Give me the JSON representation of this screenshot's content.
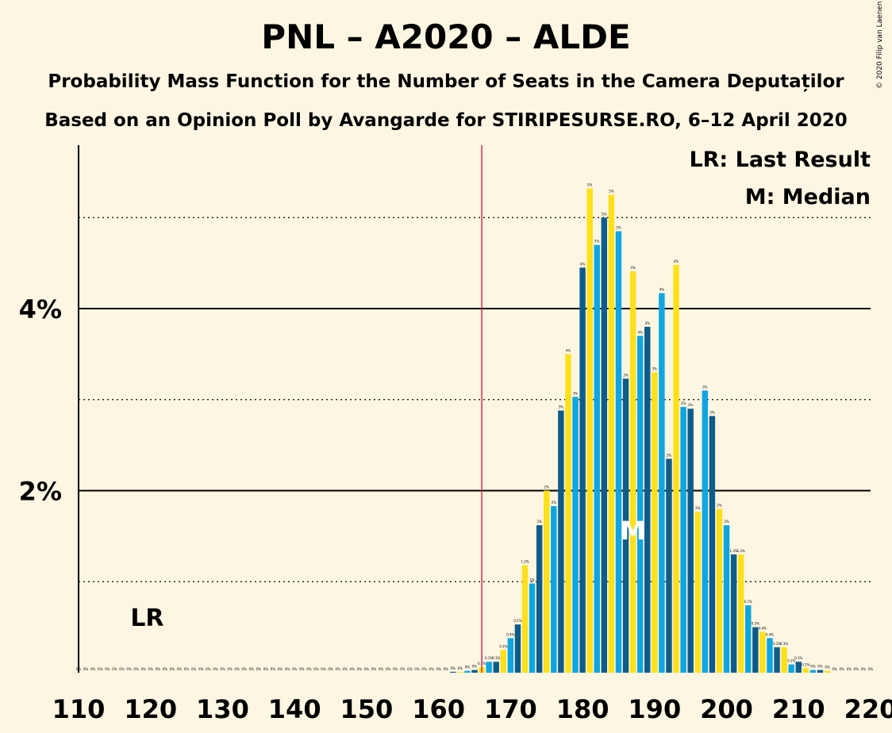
{
  "title": "PNL – A2020 – ALDE",
  "subtitle1": "Probability Mass Function for the Number of Seats in the Camera Deputaților",
  "subtitle2": "Based on an Opinion Poll by Avangarde for STIRIPESURSE.RO, 6–12 April 2020",
  "copyright": "© 2020 Filip van Laenen",
  "legend": {
    "lr": "LR: Last Result",
    "median": "M: Median"
  },
  "markers": {
    "lr_label": "LR",
    "median_label": "M"
  },
  "colors": {
    "blue_light": "#0ea5e0",
    "blue_dark": "#0d5c8a",
    "yellow": "#ffe01b",
    "last_result_line": "#c0143c"
  },
  "chart_data": {
    "type": "bar",
    "xlim": [
      110,
      220
    ],
    "ylim": [
      0,
      5.8
    ],
    "y_unit": "%",
    "xticks": [
      110,
      120,
      130,
      140,
      150,
      160,
      170,
      180,
      190,
      200,
      210,
      220
    ],
    "yticks": [
      {
        "value": 2,
        "label": "2%"
      },
      {
        "value": 4,
        "label": "4%"
      }
    ],
    "grid": "dotted at 1,3,5; solid at 2,4",
    "last_result": 166,
    "median": 187,
    "legend_position": "top-right",
    "seats": [
      110,
      111,
      112,
      113,
      114,
      115,
      116,
      117,
      118,
      119,
      120,
      121,
      122,
      123,
      124,
      125,
      126,
      127,
      128,
      129,
      130,
      131,
      132,
      133,
      134,
      135,
      136,
      137,
      138,
      139,
      140,
      141,
      142,
      143,
      144,
      145,
      146,
      147,
      148,
      149,
      150,
      151,
      152,
      153,
      154,
      155,
      156,
      157,
      158,
      159,
      160,
      161,
      162,
      163,
      164,
      165,
      166,
      167,
      168,
      169,
      170,
      171,
      172,
      173,
      174,
      175,
      176,
      177,
      178,
      179,
      180,
      181,
      182,
      183,
      184,
      185,
      186,
      187,
      188,
      189,
      190,
      191,
      192,
      193,
      194,
      195,
      196,
      197,
      198,
      199,
      200,
      201,
      202,
      203,
      204,
      205,
      206,
      207,
      208,
      209,
      210,
      211,
      212,
      213,
      214,
      215,
      216,
      217,
      218,
      219,
      220
    ],
    "values": [
      0,
      0,
      0,
      0,
      0,
      0,
      0,
      0,
      0,
      0,
      0,
      0,
      0,
      0,
      0,
      0,
      0,
      0,
      0,
      0,
      0,
      0,
      0,
      0,
      0,
      0,
      0,
      0,
      0,
      0,
      0,
      0,
      0,
      0,
      0,
      0,
      0,
      0,
      0,
      0,
      0,
      0,
      0,
      0,
      0,
      0,
      0,
      0,
      0,
      0,
      0,
      0,
      0.01,
      0.01,
      0.02,
      0.03,
      0.06,
      0.12,
      0.12,
      0.25,
      0.38,
      0.53,
      1.18,
      0.98,
      1.62,
      2.0,
      1.83,
      2.88,
      3.5,
      3.03,
      4.45,
      5.32,
      4.7,
      5.0,
      5.25,
      4.85,
      3.23,
      4.41,
      3.7,
      3.8,
      3.3,
      4.17,
      2.35,
      4.48,
      2.92,
      2.9,
      1.77,
      3.1,
      2.82,
      1.8,
      1.62,
      1.3,
      1.3,
      0.74,
      0.5,
      0.45,
      0.38,
      0.28,
      0.28,
      0.09,
      0.12,
      0.05,
      0.03,
      0.03,
      0.02,
      0,
      0,
      0,
      0,
      0,
      0
    ],
    "value_labels": [
      "0%",
      "0%",
      "0%",
      "0%",
      "0%",
      "0%",
      "0%",
      "0%",
      "0%",
      "0%",
      "0%",
      "0%",
      "0%",
      "0%",
      "0%",
      "0%",
      "0%",
      "0%",
      "0%",
      "0%",
      "0%",
      "0%",
      "0%",
      "0%",
      "0%",
      "0%",
      "0%",
      "0%",
      "0%",
      "0%",
      "0%",
      "0%",
      "0%",
      "0%",
      "0%",
      "0%",
      "0%",
      "0%",
      "0%",
      "0%",
      "0%",
      "0%",
      "0%",
      "0%",
      "0%",
      "0%",
      "0%",
      "0%",
      "0%",
      "0%",
      "0%",
      "0%",
      "0%",
      "0%",
      "0%",
      "0%",
      "0.1%",
      "0.1%",
      "0.1%",
      "0.3%",
      "0.4%",
      "0.5%",
      "1.2%",
      "1%",
      "2%",
      "2%",
      "2%",
      "3%",
      "4%",
      "3%",
      "4%",
      "5%",
      "5%",
      "5%",
      "5%",
      "5%",
      "3%",
      "4%",
      "4%",
      "4%",
      "3%",
      "4%",
      "2%",
      "4%",
      "3%",
      "3%",
      "2%",
      "3%",
      "3%",
      "2%",
      "2%",
      "1.3%",
      "1.3%",
      "0.7%",
      "0.5%",
      "0.4%",
      "0.4%",
      "0.3%",
      "0.3%",
      "0.1%",
      "0.1%",
      "0.1%",
      "0%",
      "0%",
      "0%",
      "0%",
      "0%",
      "0%",
      "0%",
      "0%",
      "0%"
    ]
  }
}
